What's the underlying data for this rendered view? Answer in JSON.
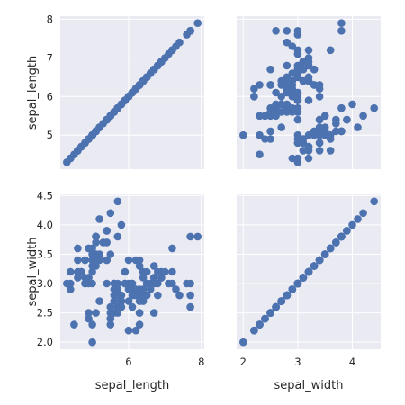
{
  "chart_data": {
    "type": "scatter",
    "variables": [
      "sepal_length",
      "sepal_width"
    ],
    "axes": {
      "sepal_length": {
        "ticks": [
          6,
          8
        ],
        "lim": [
          4.12,
          8.08
        ]
      },
      "sepal_width": {
        "ticks": [
          2.0,
          2.5,
          3.0,
          3.5,
          4.0,
          4.5
        ],
        "lim": [
          1.88,
          4.52
        ]
      },
      "sepal_length_rows": {
        "ticks": [
          5,
          6,
          7,
          8
        ],
        "lim": [
          4.12,
          8.08
        ]
      },
      "sepal_width_cols": {
        "ticks": [
          2,
          3,
          4
        ],
        "lim": [
          1.88,
          4.52
        ]
      }
    },
    "points": {
      "sepal_length": [
        5.1,
        4.9,
        4.7,
        4.6,
        5.0,
        5.4,
        4.6,
        5.0,
        4.4,
        4.9,
        5.4,
        4.8,
        4.8,
        4.3,
        5.8,
        5.7,
        5.4,
        5.1,
        5.7,
        5.1,
        5.4,
        5.1,
        4.6,
        5.1,
        4.8,
        5.0,
        5.0,
        5.2,
        5.2,
        4.7,
        4.8,
        5.4,
        5.2,
        5.5,
        4.9,
        5.0,
        5.5,
        4.9,
        4.4,
        5.1,
        5.0,
        4.5,
        4.4,
        5.0,
        5.1,
        4.8,
        5.1,
        4.6,
        5.3,
        5.0,
        7.0,
        6.4,
        6.9,
        5.5,
        6.5,
        5.7,
        6.3,
        4.9,
        6.6,
        5.2,
        5.0,
        5.9,
        6.0,
        6.1,
        5.6,
        6.7,
        5.6,
        5.8,
        6.2,
        5.6,
        5.9,
        6.1,
        6.3,
        6.1,
        6.4,
        6.6,
        6.8,
        6.7,
        6.0,
        5.7,
        5.5,
        5.5,
        5.8,
        6.0,
        5.4,
        6.0,
        6.7,
        6.3,
        5.6,
        5.5,
        5.5,
        6.1,
        5.8,
        5.0,
        5.6,
        5.7,
        5.7,
        6.2,
        5.1,
        5.7,
        6.3,
        5.8,
        7.1,
        6.3,
        6.5,
        7.6,
        4.9,
        7.3,
        6.7,
        7.2,
        6.5,
        6.4,
        6.8,
        5.7,
        5.8,
        6.4,
        6.5,
        7.7,
        7.7,
        6.0,
        6.9,
        5.6,
        7.7,
        6.3,
        6.7,
        7.2,
        6.2,
        6.1,
        6.4,
        7.2,
        7.4,
        7.9,
        6.4,
        6.3,
        6.1,
        7.7,
        6.3,
        6.4,
        6.0,
        6.9,
        6.7,
        6.9,
        5.8,
        6.8,
        6.7,
        6.7,
        6.3,
        6.5,
        6.2,
        5.9
      ],
      "sepal_width": [
        3.5,
        3.0,
        3.2,
        3.1,
        3.6,
        3.9,
        3.4,
        3.4,
        2.9,
        3.1,
        3.7,
        3.4,
        3.0,
        3.0,
        4.0,
        4.4,
        3.9,
        3.5,
        3.8,
        3.8,
        3.4,
        3.7,
        3.6,
        3.3,
        3.4,
        3.0,
        3.4,
        3.5,
        3.4,
        3.2,
        3.1,
        3.4,
        4.1,
        4.2,
        3.1,
        3.2,
        3.5,
        3.6,
        3.0,
        3.4,
        3.5,
        2.3,
        3.2,
        3.5,
        3.8,
        3.0,
        3.8,
        3.2,
        3.7,
        3.3,
        3.2,
        3.2,
        3.1,
        2.3,
        2.8,
        2.8,
        3.3,
        2.4,
        2.9,
        2.7,
        2.0,
        3.0,
        2.2,
        2.9,
        2.9,
        3.1,
        3.0,
        2.7,
        2.2,
        2.5,
        3.2,
        2.8,
        2.5,
        2.8,
        2.9,
        3.0,
        2.8,
        3.0,
        2.9,
        2.6,
        2.4,
        2.4,
        2.7,
        2.7,
        3.0,
        3.4,
        3.1,
        2.3,
        3.0,
        2.5,
        2.6,
        3.0,
        2.6,
        2.3,
        2.7,
        3.0,
        2.9,
        2.9,
        2.5,
        2.8,
        3.3,
        2.7,
        3.0,
        2.9,
        3.0,
        3.0,
        2.5,
        2.9,
        2.5,
        3.6,
        3.2,
        2.7,
        3.0,
        2.5,
        2.8,
        3.2,
        3.0,
        3.8,
        2.6,
        2.2,
        3.2,
        2.8,
        2.8,
        2.7,
        3.3,
        3.2,
        2.8,
        3.0,
        2.8,
        3.0,
        2.8,
        3.8,
        2.8,
        2.8,
        2.6,
        3.0,
        3.4,
        3.1,
        3.0,
        3.1,
        3.1,
        3.1,
        2.7,
        3.2,
        3.3,
        3.0,
        2.5,
        3.0,
        3.4,
        3.0
      ]
    },
    "grid": true,
    "colors": {
      "point": "#4c72b0",
      "panel": "#eaeaf2",
      "grid": "#ffffff",
      "text": "#262626"
    }
  }
}
